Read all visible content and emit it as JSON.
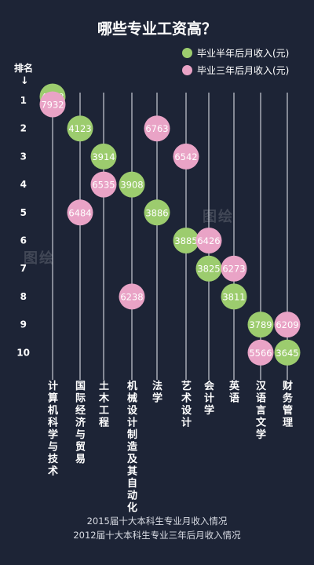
{
  "chart_data": {
    "type": "scatter",
    "title": "哪些专业工资高？",
    "y_axis_label": "排名",
    "y_arrow": "↓",
    "ranks": [
      "1",
      "2",
      "3",
      "4",
      "5",
      "6",
      "7",
      "8",
      "9",
      "10"
    ],
    "categories": [
      "计算机科学与技术",
      "国际经济与贸易",
      "土木工程",
      "机械设计制造及其自动化",
      "法学",
      "艺术设计",
      "会计学",
      "英语",
      "汉语言文学",
      "财务管理"
    ],
    "series": [
      {
        "name": "毕业半年后月收入(元)",
        "color": "#9ccc6e",
        "points": [
          {
            "category": "计算机科学与技术",
            "rank": 1,
            "value": 4978
          },
          {
            "category": "国际经济与贸易",
            "rank": 2,
            "value": 4123
          },
          {
            "category": "土木工程",
            "rank": 3,
            "value": 3914
          },
          {
            "category": "机械设计制造及其自动化",
            "rank": 4,
            "value": 3908
          },
          {
            "category": "法学",
            "rank": 5,
            "value": 3886
          },
          {
            "category": "艺术设计",
            "rank": 6,
            "value": 3885
          },
          {
            "category": "会计学",
            "rank": 7,
            "value": 3825
          },
          {
            "category": "英语",
            "rank": 8,
            "value": 3811
          },
          {
            "category": "汉语言文学",
            "rank": 9,
            "value": 3789
          },
          {
            "category": "财务管理",
            "rank": 10,
            "value": 3645
          }
        ]
      },
      {
        "name": "毕业三年后月收入(元)",
        "color": "#e9a3c6",
        "points": [
          {
            "category": "计算机科学与技术",
            "rank": 1,
            "value": 7932
          },
          {
            "category": "法学",
            "rank": 2,
            "value": 6763
          },
          {
            "category": "艺术设计",
            "rank": 3,
            "value": 6542
          },
          {
            "category": "土木工程",
            "rank": 4,
            "value": 6535
          },
          {
            "category": "国际经济与贸易",
            "rank": 5,
            "value": 6484
          },
          {
            "category": "会计学",
            "rank": 6,
            "value": 6426
          },
          {
            "category": "英语",
            "rank": 7,
            "value": 6273
          },
          {
            "category": "机械设计制造及其自动化",
            "rank": 8,
            "value": 6238
          },
          {
            "category": "财务管理",
            "rank": 9,
            "value": 6209
          },
          {
            "category": "汉语言文学",
            "rank": 10,
            "value": 5566
          }
        ]
      }
    ],
    "footnotes": [
      "2015届十大本科生专业月收入情况",
      "2012届十大本科生专业三年后月收入情况"
    ],
    "grid": false,
    "legend_position": "top-right"
  },
  "watermark_text": "图绘"
}
